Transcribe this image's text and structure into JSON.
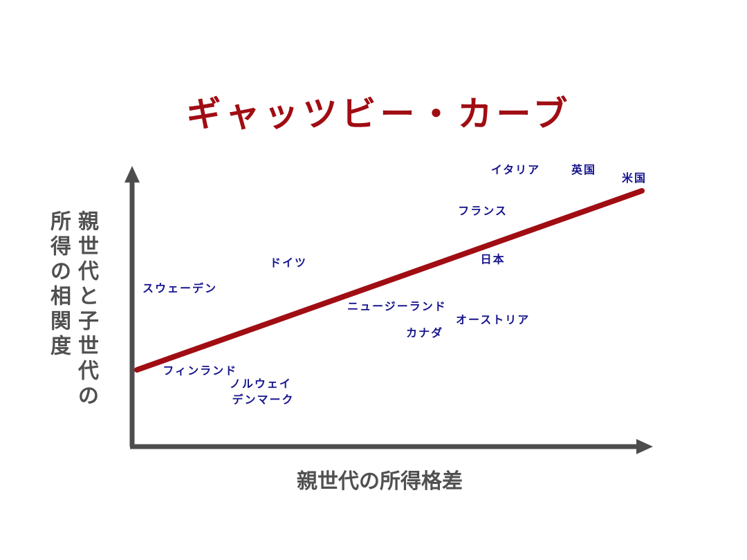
{
  "chart_data": {
    "type": "scatter",
    "title": "ギャッツビー・カーブ",
    "xlabel": "親世代の所得格差",
    "ylabel_lines": [
      "親世代と子世代の",
      "所得の相関度"
    ],
    "grid": false,
    "legend": "none",
    "xlim": [
      0,
      100
    ],
    "ylim": [
      0,
      100
    ],
    "points": [
      {
        "label": "イタリア",
        "x": 75.0,
        "y": 104.5
      },
      {
        "label": "英国",
        "x": 88.5,
        "y": 104.5
      },
      {
        "label": "米国",
        "x": 98.5,
        "y": 101.0
      },
      {
        "label": "フランス",
        "x": 68.5,
        "y": 87.5
      },
      {
        "label": "日本",
        "x": 70.5,
        "y": 67.5
      },
      {
        "label": "ドイツ",
        "x": 30.0,
        "y": 66.0
      },
      {
        "label": "スウェーデン",
        "x": 8.5,
        "y": 55.5
      },
      {
        "label": "ニュージーランド",
        "x": 51.5,
        "y": 48.0
      },
      {
        "label": "オーストリア",
        "x": 70.5,
        "y": 42.5
      },
      {
        "label": "カナダ",
        "x": 57.0,
        "y": 37.0
      },
      {
        "label": "フィンランド",
        "x": 12.5,
        "y": 21.5
      },
      {
        "label": "ノルウェイ",
        "x": 24.5,
        "y": 16.0
      },
      {
        "label": "デンマーク",
        "x": 25.0,
        "y": 9.5
      }
    ],
    "trend_line": {
      "x": [
        0,
        100
      ],
      "y": [
        22,
        96
      ]
    },
    "colors": {
      "title": "#a00d13",
      "trend_line": "#a00d13",
      "axis": "#4d4d4d",
      "axis_label": "#505050",
      "point_label": "#16148c"
    }
  }
}
